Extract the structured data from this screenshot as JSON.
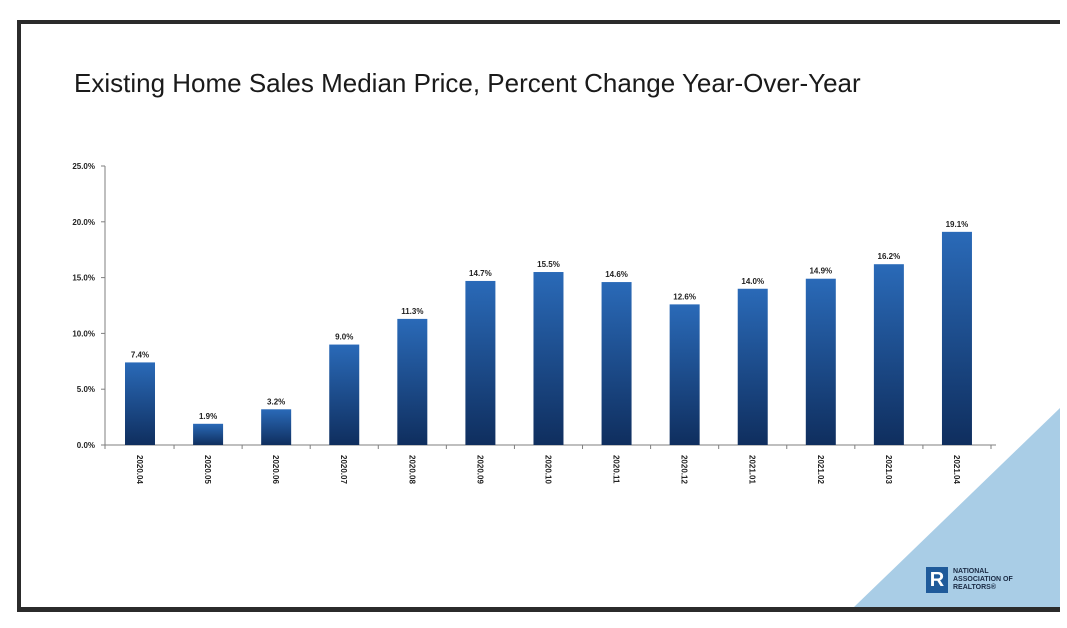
{
  "slide": {
    "title": "Existing Home Sales Median Price, Percent Change Year-Over-Year"
  },
  "logo": {
    "mark": "R",
    "line1": "NATIONAL",
    "line2": "ASSOCIATION OF",
    "line3": "REALTORS®"
  },
  "colors": {
    "bar_top": "#2a6ab8",
    "bar_bottom": "#0f2e5e",
    "corner": "#a9cde6",
    "axis": "#7f7f7f"
  },
  "chart_data": {
    "type": "bar",
    "title": "Existing Home Sales Median Price, Percent Change Year-Over-Year",
    "xlabel": "",
    "ylabel": "",
    "categories": [
      "2020.04",
      "2020.05",
      "2020.06",
      "2020.07",
      "2020.08",
      "2020.09",
      "2020.10",
      "2020.11",
      "2020.12",
      "2021.01",
      "2021.02",
      "2021.03",
      "2021.04"
    ],
    "values": [
      7.4,
      1.9,
      3.2,
      9.0,
      11.3,
      14.7,
      15.5,
      14.6,
      12.6,
      14.0,
      14.9,
      16.2,
      19.1
    ],
    "data_labels": [
      "7.4%",
      "1.9%",
      "3.2%",
      "9.0%",
      "11.3%",
      "14.7%",
      "15.5%",
      "14.6%",
      "12.6%",
      "14.0%",
      "14.9%",
      "16.2%",
      "19.1%"
    ],
    "ylim": [
      0,
      25
    ],
    "yticks": [
      0,
      5,
      10,
      15,
      20,
      25
    ],
    "ytick_labels": [
      "0.0%",
      "5.0%",
      "10.0%",
      "15.0%",
      "20.0%",
      "25.0%"
    ],
    "grid": false,
    "legend": "none"
  }
}
